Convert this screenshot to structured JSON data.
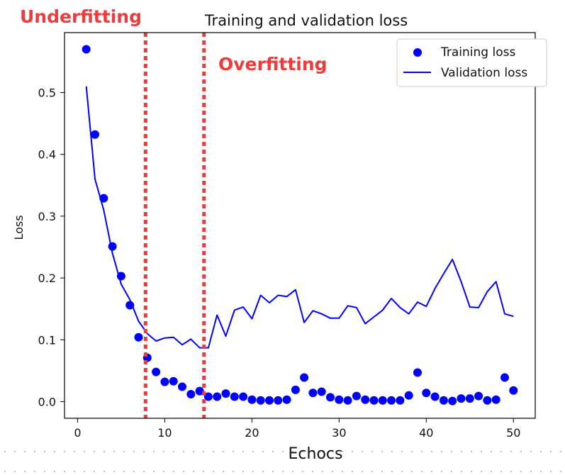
{
  "annotations": {
    "underfitting_label": "Underfitting",
    "overfitting_label": "Overfitting",
    "color": "#ef3b3b"
  },
  "chart_data": {
    "type": "scatter",
    "title": "Training and validation loss",
    "xlabel": "Echocs",
    "ylabel": "Loss",
    "xlim": [
      -1.5,
      52.5
    ],
    "ylim": [
      -0.027,
      0.597
    ],
    "xticks": [
      0,
      10,
      20,
      30,
      40,
      50
    ],
    "yticks": [
      0.0,
      0.1,
      0.2,
      0.3,
      0.4,
      0.5
    ],
    "ytick_labels": [
      "0.0",
      "0.1",
      "0.2",
      "0.3",
      "0.4",
      "0.5"
    ],
    "grid": false,
    "legend_position": "upper right",
    "vertical_lines": [
      7.8,
      14.5
    ],
    "series": [
      {
        "name": "Training loss",
        "kind": "scatter",
        "color": "#0000ff",
        "x": [
          1,
          2,
          3,
          4,
          5,
          6,
          7,
          8,
          9,
          10,
          11,
          12,
          13,
          14,
          15,
          16,
          17,
          18,
          19,
          20,
          21,
          22,
          23,
          24,
          25,
          26,
          27,
          28,
          29,
          30,
          31,
          32,
          33,
          34,
          35,
          36,
          37,
          38,
          39,
          40,
          41,
          42,
          43,
          44,
          45,
          46,
          47,
          48,
          49,
          50
        ],
        "y": [
          0.57,
          0.432,
          0.329,
          0.251,
          0.203,
          0.156,
          0.104,
          0.071,
          0.048,
          0.032,
          0.033,
          0.024,
          0.012,
          0.017,
          0.008,
          0.008,
          0.013,
          0.008,
          0.008,
          0.003,
          0.002,
          0.002,
          0.002,
          0.003,
          0.019,
          0.039,
          0.014,
          0.016,
          0.007,
          0.003,
          0.002,
          0.009,
          0.003,
          0.002,
          0.002,
          0.002,
          0.002,
          0.01,
          0.047,
          0.014,
          0.008,
          0.002,
          0.001,
          0.005,
          0.005,
          0.009,
          0.002,
          0.003,
          0.039,
          0.018
        ]
      },
      {
        "name": "Validation loss",
        "kind": "line",
        "color": "#0000ff",
        "x": [
          1,
          2,
          3,
          4,
          5,
          6,
          7,
          8,
          9,
          10,
          11,
          12,
          13,
          14,
          15,
          16,
          17,
          18,
          19,
          20,
          21,
          22,
          23,
          24,
          25,
          26,
          27,
          28,
          29,
          30,
          31,
          32,
          33,
          34,
          35,
          36,
          37,
          38,
          39,
          40,
          41,
          42,
          43,
          44,
          45,
          46,
          47,
          48,
          49,
          50
        ],
        "y": [
          0.51,
          0.36,
          0.31,
          0.24,
          0.19,
          0.165,
          0.13,
          0.11,
          0.098,
          0.103,
          0.104,
          0.092,
          0.101,
          0.087,
          0.087,
          0.14,
          0.106,
          0.148,
          0.153,
          0.134,
          0.172,
          0.16,
          0.172,
          0.17,
          0.181,
          0.128,
          0.147,
          0.142,
          0.135,
          0.135,
          0.155,
          0.152,
          0.126,
          0.137,
          0.148,
          0.167,
          0.152,
          0.142,
          0.161,
          0.154,
          0.183,
          0.207,
          0.23,
          0.194,
          0.153,
          0.152,
          0.178,
          0.194,
          0.142,
          0.138
        ]
      }
    ]
  }
}
